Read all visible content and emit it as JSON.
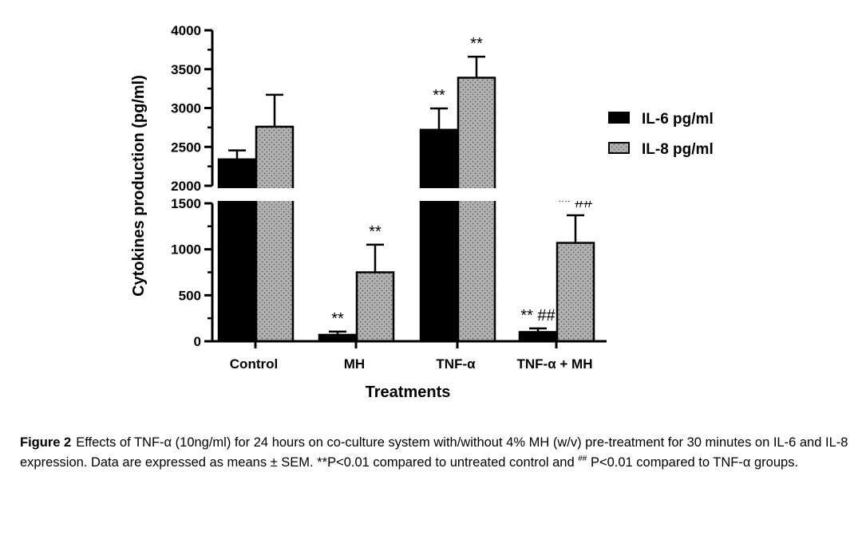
{
  "chart_data": {
    "type": "bar",
    "xlabel": "Treatments",
    "ylabel": "Cytokines production (pg/ml)",
    "categories": [
      "Control",
      "MH",
      "TNF-α",
      "TNF-α + MH"
    ],
    "y_axis_break": [
      1500,
      2000
    ],
    "lower_ylim": [
      0,
      1500
    ],
    "upper_ylim": [
      2000,
      4000
    ],
    "lower_ticks": [
      "0",
      "500",
      "1000",
      "1500"
    ],
    "upper_ticks": [
      "2000",
      "2500",
      "3000",
      "3500",
      "4000"
    ],
    "series": [
      {
        "name": "IL-6 pg/ml",
        "color": "#000000",
        "pattern": "solid",
        "values": [
          2340,
          70,
          2720,
          100
        ],
        "errors": [
          115,
          35,
          275,
          40
        ],
        "annotations": [
          "",
          "**",
          "**",
          "**##"
        ]
      },
      {
        "name": "IL-8 pg/ml",
        "color": "#a8a8a8",
        "pattern": "dotted",
        "values": [
          2760,
          750,
          3390,
          1070
        ],
        "errors": [
          410,
          300,
          270,
          300
        ],
        "annotations": [
          "",
          "**",
          "**",
          "**##"
        ]
      }
    ],
    "legend_position": "right"
  },
  "caption": {
    "figure_label": "Figure 2",
    "text_before_sup": "Effects of TNF-α (10ng/ml) for 24 hours on co-culture system with/without 4% MH (w/v) pre-treatment for 30 minutes on IL-6 and IL-8 expression. Data are expressed as means ± SEM. **P<0.01 compared to untreated control and ",
    "sup": "##",
    "text_after_sup": " P<0.01 compared to TNF-α groups."
  }
}
